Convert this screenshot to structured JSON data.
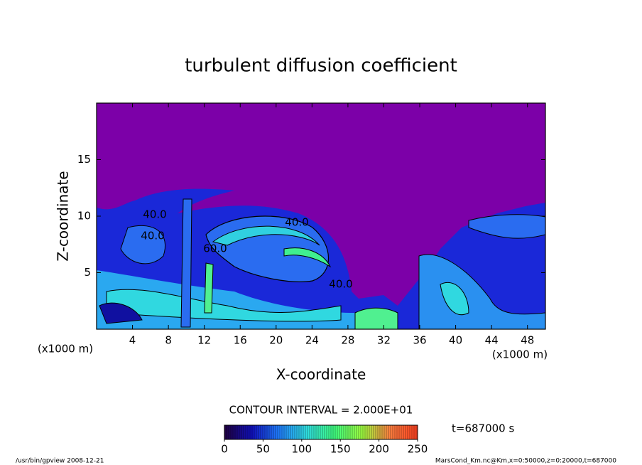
{
  "chart_data": {
    "type": "contour",
    "title": "turbulent diffusion coefficient",
    "xlabel": "X-coordinate",
    "ylabel": "Z-coordinate",
    "x_unit": "(x1000 m)",
    "y_unit": "(x1000 m)",
    "xlim": [
      0,
      50
    ],
    "xticks": [
      4,
      8,
      12,
      16,
      20,
      24,
      28,
      32,
      36,
      40,
      44,
      48
    ],
    "ylim": [
      0,
      20
    ],
    "yticks": [
      5,
      10,
      15
    ],
    "contour_interval": "CONTOUR INTERVAL = 2.000E+01",
    "contour_labels": [
      {
        "value": 40,
        "label": "40.0"
      },
      {
        "value": 40,
        "label": "40.0"
      },
      {
        "value": 60,
        "label": "60.0"
      },
      {
        "value": 40,
        "label": "40.0"
      },
      {
        "value": 40,
        "label": "40.0"
      }
    ],
    "colorbar_lim": [
      0,
      250
    ],
    "colorbar_ticks": [
      0,
      50,
      100,
      150,
      200,
      250
    ],
    "colors": [
      "#200040",
      "#1010c0",
      "#2080ff",
      "#30e0e0",
      "#40ff80",
      "#a0ff40",
      "#ff8040",
      "#ff4020"
    ],
    "time": "t=687000 s",
    "footer_left": "/usr/bin/gpview   2008-12-21",
    "footer_right": "MarsCond_Km.nc@Km,x=0:50000,z=0:20000,t=687000"
  }
}
